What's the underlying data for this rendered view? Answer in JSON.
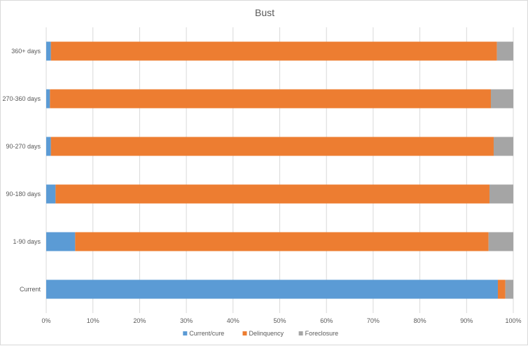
{
  "chart_data": {
    "type": "bar",
    "orientation": "horizontal",
    "stacked": "percent",
    "title": "Bust",
    "xlabel": "",
    "ylabel": "",
    "categories": [
      "360+ days",
      "270-360 days",
      "90-270 days",
      "90-180 days",
      "1-90 days",
      "Current"
    ],
    "series": [
      {
        "name": "Current/cure",
        "color": "#5B9BD5",
        "values": [
          1.0,
          0.8,
          1.0,
          2.0,
          6.2,
          96.7
        ]
      },
      {
        "name": "Delinquency",
        "color": "#ED7D31",
        "values": [
          95.5,
          94.4,
          94.8,
          92.9,
          88.5,
          1.6
        ]
      },
      {
        "name": "Foreclosure",
        "color": "#A5A5A5",
        "values": [
          3.5,
          4.8,
          4.2,
          5.1,
          5.3,
          1.7
        ]
      }
    ],
    "xlim": [
      0,
      100
    ],
    "x_ticks": [
      "0%",
      "10%",
      "20%",
      "30%",
      "40%",
      "50%",
      "60%",
      "70%",
      "80%",
      "90%",
      "100%"
    ],
    "grid": true,
    "legend_position": "bottom"
  }
}
